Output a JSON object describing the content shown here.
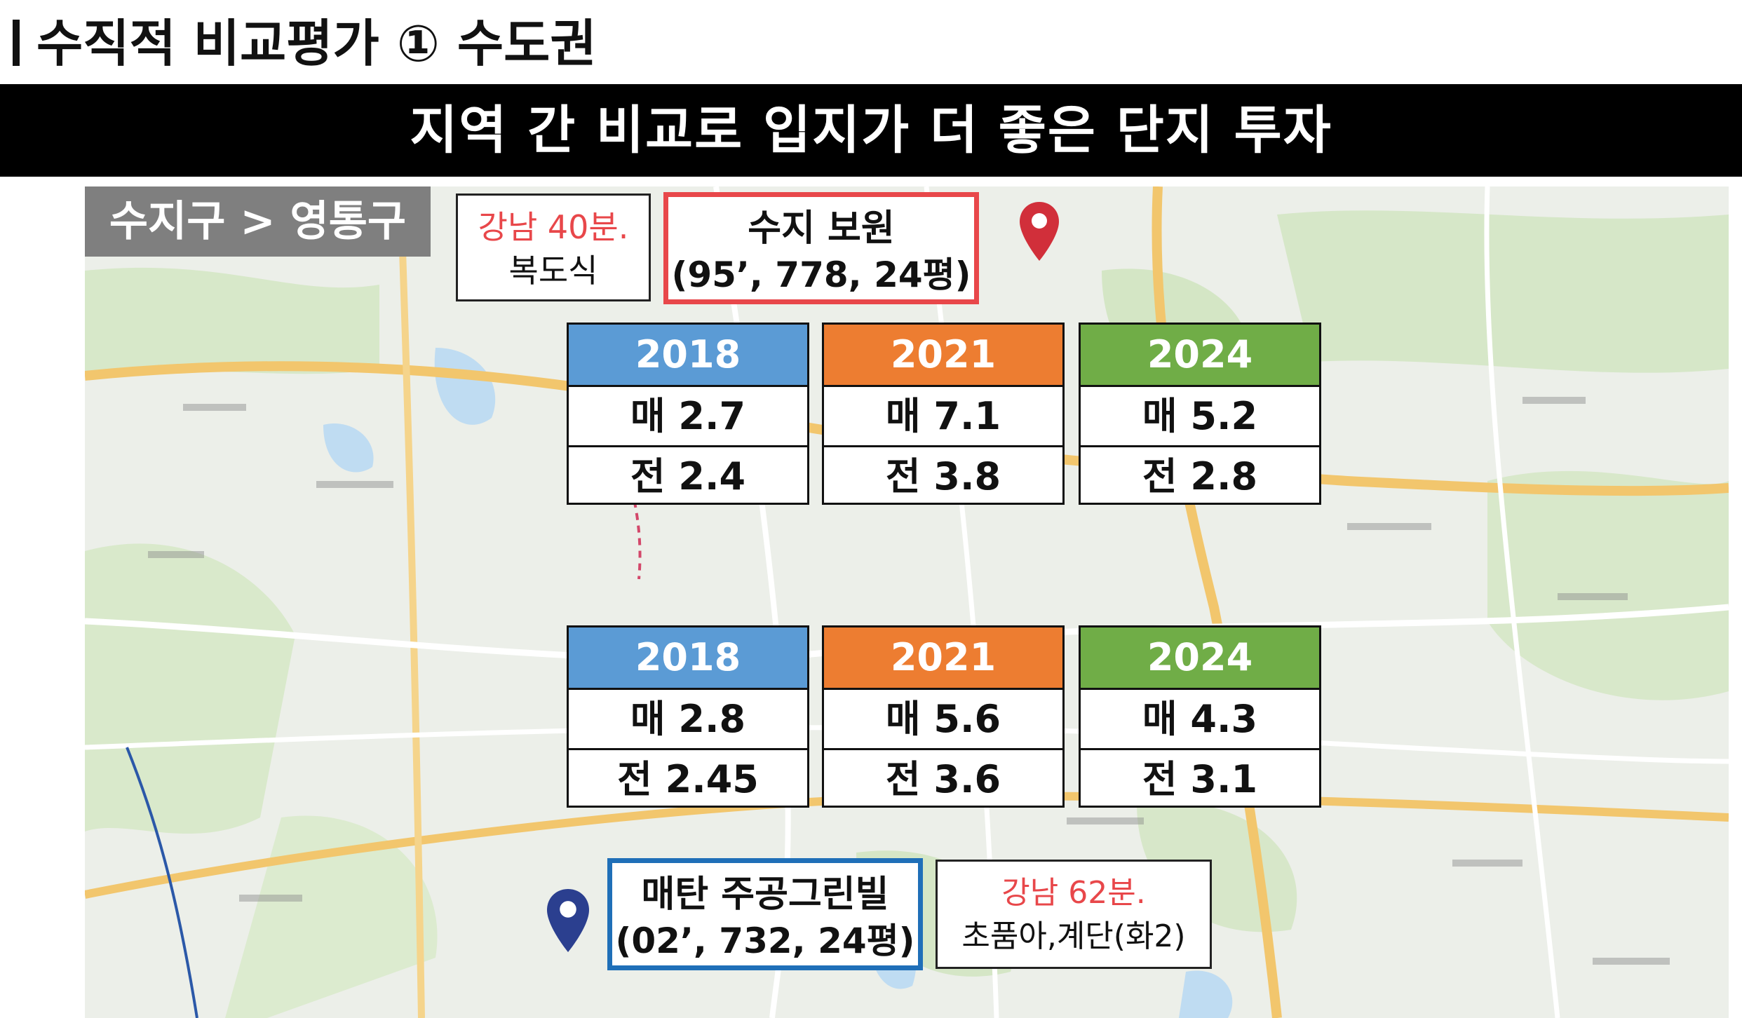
{
  "header": {
    "title": "수직적 비교평가 ① 수도권",
    "banner": "지역 간 비교로 입지가 더 좋은 단지 투자"
  },
  "map": {
    "region_label": "수지구 > 영통구"
  },
  "top_complex": {
    "commute_line1": "강남 40분.",
    "commute_line2": "복도식",
    "name": "수지 보원",
    "spec": "(95’, 778, 24평)",
    "cards": [
      {
        "year": "2018",
        "sale": "매 2.7",
        "jeonse": "전 2.4"
      },
      {
        "year": "2021",
        "sale": "매 7.1",
        "jeonse": "전 3.8"
      },
      {
        "year": "2024",
        "sale": "매 5.2",
        "jeonse": "전 2.8"
      }
    ]
  },
  "bottom_complex": {
    "name": "매탄 주공그린빌",
    "spec": "(02’, 732, 24평)",
    "commute_line1": "강남 62분.",
    "commute_line2": "초품아,계단(화2)",
    "cards": [
      {
        "year": "2018",
        "sale": "매 2.8",
        "jeonse": "전 2.45"
      },
      {
        "year": "2021",
        "sale": "매 5.6",
        "jeonse": "전 3.6"
      },
      {
        "year": "2024",
        "sale": "매 4.3",
        "jeonse": "전 3.1"
      }
    ]
  },
  "colors": {
    "year_2018": "#5b9bd5",
    "year_2021": "#ed7d31",
    "year_2024": "#70ad47",
    "highlight_red": "#e8474a",
    "highlight_blue": "#1f6fb8",
    "pin_red": "#d12f3a",
    "pin_blue": "#2b3f8f"
  },
  "icons": [
    "map-pin-icon"
  ]
}
